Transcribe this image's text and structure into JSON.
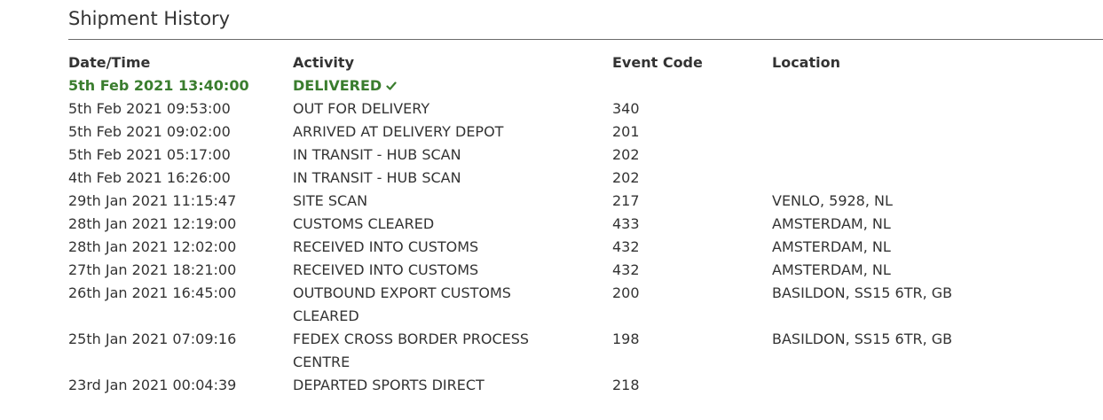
{
  "section": {
    "title": "Shipment History"
  },
  "table": {
    "headers": {
      "datetime": "Date/Time",
      "activity": "Activity",
      "event_code": "Event Code",
      "location": "Location"
    },
    "rows": [
      {
        "datetime": "5th Feb 2021 13:40:00",
        "activity": "DELIVERED",
        "event_code": "",
        "location": "",
        "status": "delivered"
      },
      {
        "datetime": "5th Feb 2021 09:53:00",
        "activity": "OUT FOR DELIVERY",
        "event_code": "340",
        "location": ""
      },
      {
        "datetime": "5th Feb 2021 09:02:00",
        "activity": "ARRIVED AT DELIVERY DEPOT",
        "event_code": "201",
        "location": ""
      },
      {
        "datetime": "5th Feb 2021 05:17:00",
        "activity": "IN TRANSIT - HUB SCAN",
        "event_code": "202",
        "location": ""
      },
      {
        "datetime": "4th Feb 2021 16:26:00",
        "activity": "IN TRANSIT - HUB SCAN",
        "event_code": "202",
        "location": ""
      },
      {
        "datetime": "29th Jan 2021 11:15:47",
        "activity": "SITE SCAN",
        "event_code": "217",
        "location": "VENLO, 5928, NL"
      },
      {
        "datetime": "28th Jan 2021 12:19:00",
        "activity": "CUSTOMS CLEARED",
        "event_code": "433",
        "location": "AMSTERDAM, NL"
      },
      {
        "datetime": "28th Jan 2021 12:02:00",
        "activity": "RECEIVED INTO CUSTOMS",
        "event_code": "432",
        "location": "AMSTERDAM, NL"
      },
      {
        "datetime": "27th Jan 2021 18:21:00",
        "activity": "RECEIVED INTO CUSTOMS",
        "event_code": "432",
        "location": "AMSTERDAM, NL"
      },
      {
        "datetime": "26th Jan 2021 16:45:00",
        "activity": "OUTBOUND EXPORT CUSTOMS CLEARED",
        "event_code": "200",
        "location": "BASILDON, SS15 6TR, GB"
      },
      {
        "datetime": "25th Jan 2021 07:09:16",
        "activity": "FEDEX CROSS BORDER PROCESS CENTRE",
        "event_code": "198",
        "location": "BASILDON, SS15 6TR, GB"
      },
      {
        "datetime": "23rd Jan 2021 00:04:39",
        "activity": "DEPARTED SPORTS DIRECT",
        "event_code": "218",
        "location": ""
      }
    ]
  },
  "colors": {
    "text": "#333333",
    "delivered_green": "#3a7d2e",
    "rule": "#6b6b6b"
  },
  "icons": {
    "delivered": "check-icon"
  }
}
